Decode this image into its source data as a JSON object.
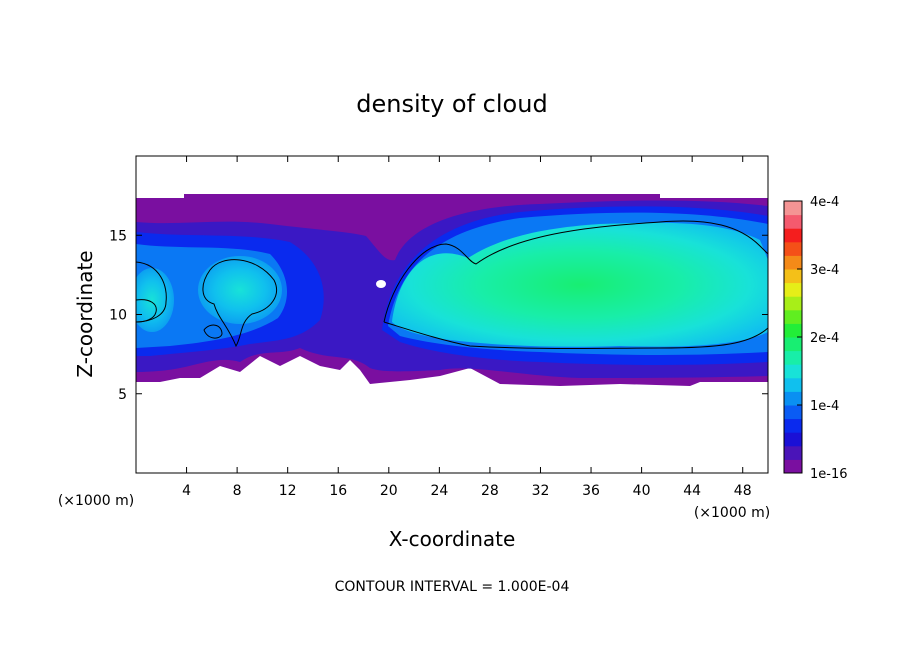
{
  "chart_data": {
    "type": "heatmap",
    "title": "density of cloud",
    "xlabel": "X-coordinate",
    "ylabel": "Z-coordinate",
    "x_unit": "(×1000 m)",
    "xlim": [
      0,
      50
    ],
    "ylim": [
      0,
      20
    ],
    "x_ticks": [
      4,
      8,
      12,
      16,
      20,
      24,
      28,
      32,
      36,
      40,
      44,
      48
    ],
    "y_ticks": [
      5,
      10,
      15
    ],
    "colorbar": {
      "min": 1e-16,
      "max": 0.0004,
      "tick_labels": [
        "1e-16",
        "1e-4",
        "2e-4",
        "3e-4",
        "4e-4"
      ],
      "colors": [
        "#7a0fa0",
        "#4a14b8",
        "#1a10d6",
        "#0a2aee",
        "#0a5cf4",
        "#0a90f2",
        "#10c0ee",
        "#18e2d8",
        "#18eea8",
        "#18ee72",
        "#22ee38",
        "#60ee20",
        "#a8ee18",
        "#e6ee18",
        "#f4c018",
        "#f48a18",
        "#f45018",
        "#f41e1e",
        "#f45a6e",
        "#f49494"
      ]
    },
    "contour_interval": "CONTOUR INTERVAL = 1.000E-04",
    "contour_levels": [
      0.0001
    ],
    "cloud_layer": {
      "base_z": 6,
      "top_z": 17.3
    },
    "core_region": {
      "x_range": [
        23,
        50
      ],
      "z_range": [
        8,
        16
      ],
      "peak_value": 0.00018
    }
  }
}
